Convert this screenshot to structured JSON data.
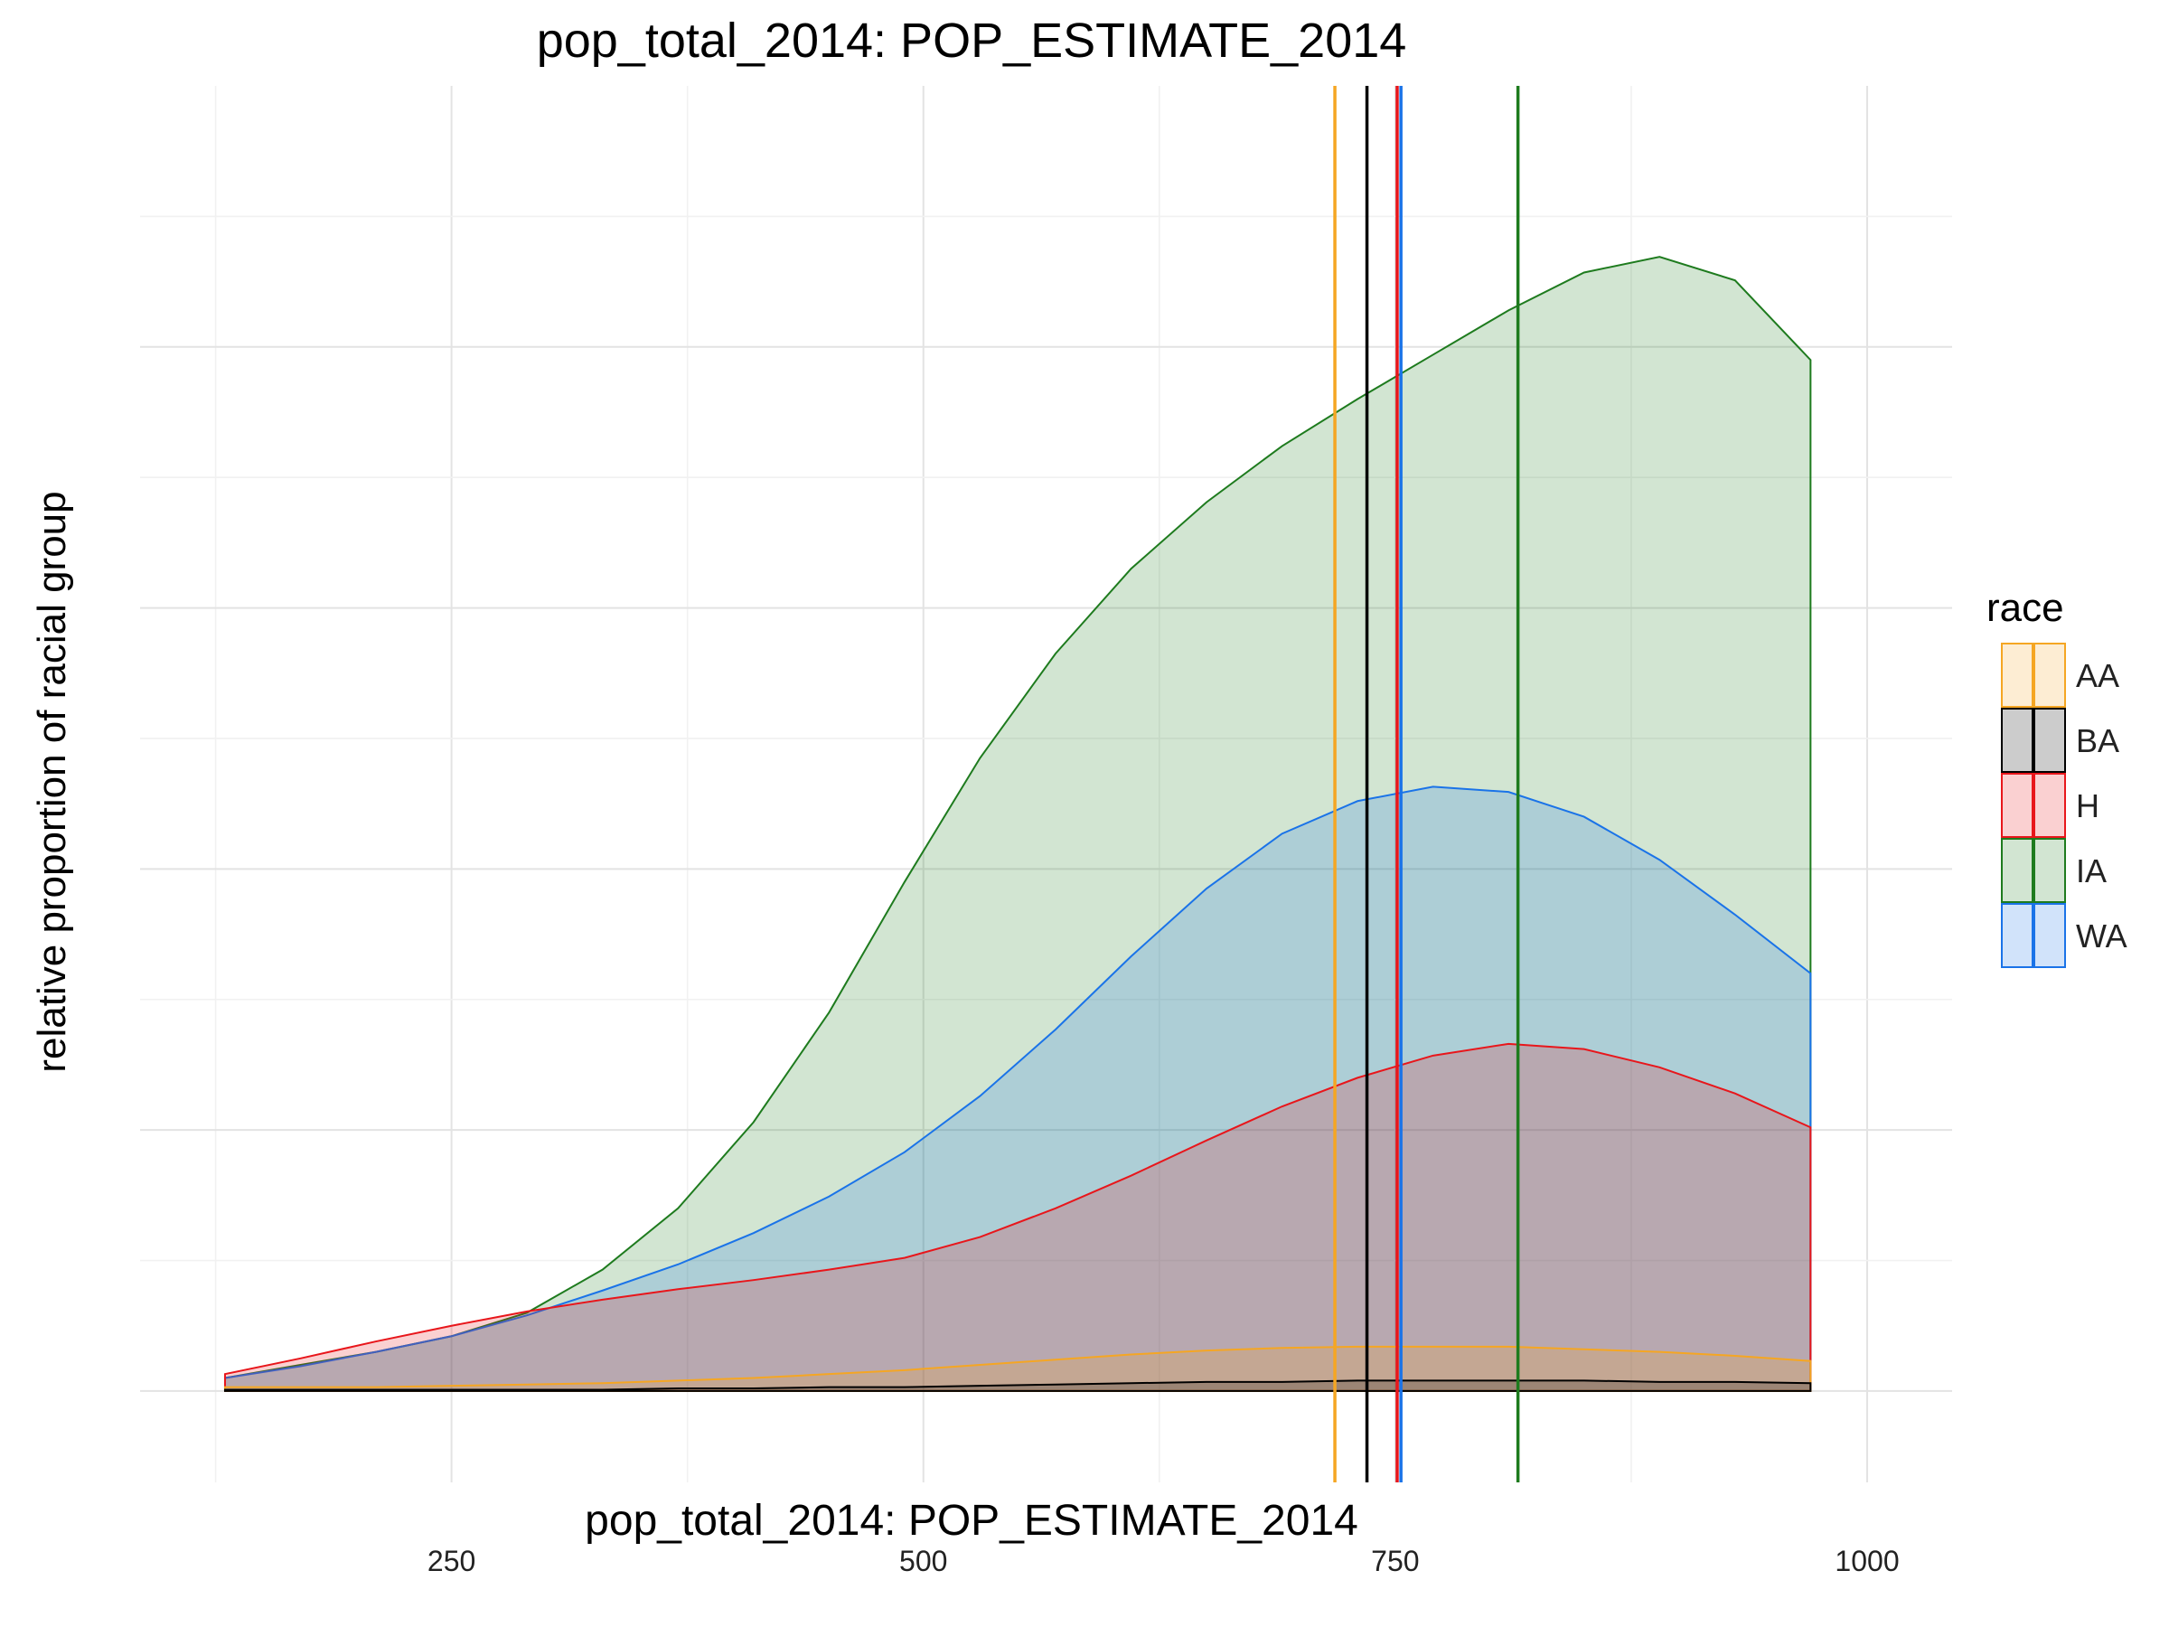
{
  "chart_data": {
    "type": "area",
    "title": "pop_total_2014: POP_ESTIMATE_2014",
    "xlabel": "pop_total_2014: POP_ESTIMATE_2014",
    "ylabel": "relative proportion of racial group",
    "xlim": [
      85,
      1045
    ],
    "ylim": [
      -0.07,
      1.0
    ],
    "x_ticks": [
      250,
      500,
      750,
      1000
    ],
    "y_ticks_labeled": false,
    "grid": true,
    "legend": {
      "title": "race",
      "position": "right"
    },
    "x": [
      130,
      170,
      210,
      250,
      290,
      330,
      370,
      410,
      450,
      490,
      530,
      570,
      610,
      650,
      690,
      730,
      770,
      810,
      850,
      890,
      930,
      970
    ],
    "series": [
      {
        "name": "AA",
        "color": "#F5A623",
        "values": [
          0.003,
          0.003,
          0.003,
          0.004,
          0.005,
          0.006,
          0.008,
          0.01,
          0.013,
          0.016,
          0.02,
          0.024,
          0.028,
          0.031,
          0.033,
          0.034,
          0.034,
          0.034,
          0.032,
          0.03,
          0.027,
          0.023
        ],
        "mean": 718
      },
      {
        "name": "BA",
        "color": "#000000",
        "values": [
          0.001,
          0.001,
          0.001,
          0.001,
          0.001,
          0.001,
          0.002,
          0.002,
          0.003,
          0.003,
          0.004,
          0.005,
          0.006,
          0.007,
          0.007,
          0.008,
          0.008,
          0.008,
          0.008,
          0.007,
          0.007,
          0.006
        ],
        "mean": 735
      },
      {
        "name": "H",
        "color": "#E8161B",
        "values": [
          0.013,
          0.025,
          0.038,
          0.05,
          0.061,
          0.07,
          0.078,
          0.085,
          0.093,
          0.102,
          0.118,
          0.14,
          0.165,
          0.192,
          0.218,
          0.24,
          0.257,
          0.266,
          0.262,
          0.248,
          0.228,
          0.202
        ],
        "mean": 751
      },
      {
        "name": "IA",
        "color": "#1E7B1E",
        "values": [
          0.01,
          0.02,
          0.03,
          0.042,
          0.06,
          0.093,
          0.14,
          0.206,
          0.29,
          0.39,
          0.485,
          0.565,
          0.63,
          0.681,
          0.724,
          0.76,
          0.794,
          0.828,
          0.857,
          0.869,
          0.851,
          0.79
        ],
        "mean": 815
      },
      {
        "name": "WA",
        "color": "#1A73E8",
        "values": [
          0.01,
          0.019,
          0.03,
          0.042,
          0.058,
          0.077,
          0.097,
          0.121,
          0.149,
          0.183,
          0.226,
          0.277,
          0.333,
          0.385,
          0.427,
          0.452,
          0.463,
          0.459,
          0.44,
          0.407,
          0.365,
          0.32
        ],
        "mean": 753
      }
    ]
  }
}
